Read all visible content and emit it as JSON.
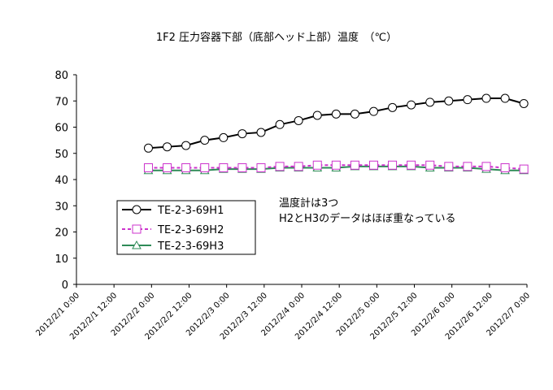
{
  "chart_data": {
    "type": "line",
    "title": "1F2 圧力容器下部（底部ヘッド上部）温度　（℃）",
    "xlabel": "",
    "ylabel": "",
    "ylim": [
      0,
      80
    ],
    "yticks": [
      "0",
      "10",
      "20",
      "30",
      "40",
      "50",
      "60",
      "70",
      "80"
    ],
    "xlim": [
      "2012/2/1 0:00",
      "2012/2/7 0:00"
    ],
    "xticks": [
      "2012/2/1 0:00",
      "2012/2/1 12:00",
      "2012/2/2 0:00",
      "2012/2/2 12:00",
      "2012/2/3 0:00",
      "2012/2/3 12:00",
      "2012/2/4 0:00",
      "2012/2/4 12:00",
      "2012/2/5 0:00",
      "2012/2/5 12:00",
      "2012/2/6 0:00",
      "2012/2/6 12:00",
      "2012/2/7 0:00"
    ],
    "grid": false,
    "legend": "left-middle",
    "x": [
      "2012/2/1 23:00",
      "2012/2/2 5:00",
      "2012/2/2 11:00",
      "2012/2/2 17:00",
      "2012/2/2 23:00",
      "2012/2/3 5:00",
      "2012/2/3 11:00",
      "2012/2/3 17:00",
      "2012/2/3 23:00",
      "2012/2/4 5:00",
      "2012/2/4 11:00",
      "2012/2/4 17:00",
      "2012/2/4 23:00",
      "2012/2/5 5:00",
      "2012/2/5 11:00",
      "2012/2/5 17:00",
      "2012/2/5 23:00",
      "2012/2/6 5:00",
      "2012/2/6 11:00",
      "2012/2/6 17:00",
      "2012/2/6 23:00"
    ],
    "series": [
      {
        "name": "TE-2-3-69H1",
        "color": "#000000",
        "marker": "circle",
        "dash": "solid",
        "values": [
          52.0,
          52.5,
          53.0,
          55.0,
          56.0,
          57.5,
          58.0,
          61.0,
          62.5,
          64.5,
          65.0,
          65.0,
          66.0,
          67.5,
          68.5,
          69.5,
          70.0,
          70.5,
          71.0,
          71.0,
          69.0
        ]
      },
      {
        "name": "TE-2-3-69H2",
        "color": "#cc33cc",
        "marker": "square",
        "dash": "dashed",
        "values": [
          44.5,
          44.5,
          44.5,
          44.5,
          44.5,
          44.5,
          44.5,
          45.0,
          45.0,
          45.5,
          45.5,
          45.5,
          45.5,
          45.5,
          45.5,
          45.5,
          45.0,
          45.0,
          45.0,
          44.5,
          44.0
        ]
      },
      {
        "name": "TE-2-3-69H3",
        "color": "#2e8b57",
        "marker": "triangle",
        "dash": "solid",
        "values": [
          43.5,
          43.5,
          43.5,
          43.5,
          44.0,
          44.0,
          44.0,
          44.5,
          44.5,
          44.5,
          44.5,
          45.0,
          45.0,
          45.0,
          45.0,
          44.5,
          44.5,
          44.5,
          44.0,
          43.5,
          43.5
        ]
      }
    ],
    "annotations": [
      "温度計は3つ",
      "H2とH3のデータはほぼ重なっている"
    ]
  }
}
